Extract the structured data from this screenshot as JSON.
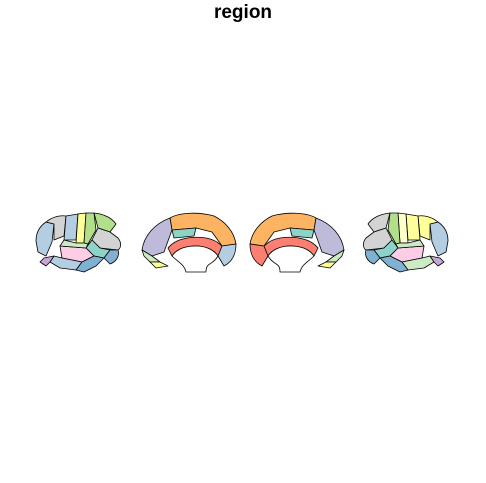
{
  "title": "region",
  "colors": {
    "blue": "#b3cde3",
    "green": "#ccebc5",
    "purple": "#c5a6d6",
    "yellow": "#ffff99",
    "grey": "#d3d3d3",
    "lightgreen": "#b2df8a",
    "pink": "#fccde5",
    "teal": "#8dd3c7",
    "orange": "#fdb462",
    "lavender": "#bebada",
    "salmon": "#fb8072",
    "skyblue": "#80b1d3",
    "beige": "#ffffcc",
    "white": "#ffffff"
  }
}
